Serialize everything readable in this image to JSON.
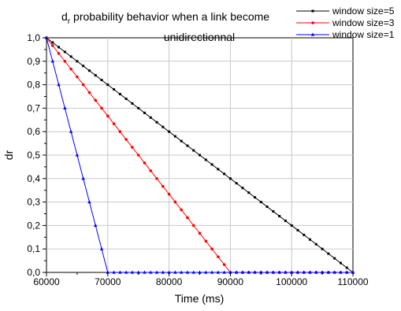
{
  "chart_data": {
    "type": "line",
    "title_main": "d",
    "title_sub": "r",
    "title_rest": " probability behavior when a link become",
    "title_line2": "unidirectionnal",
    "xlabel": "Time (ms)",
    "ylabel": "dr",
    "xlim": [
      60000,
      110000
    ],
    "ylim": [
      0,
      1.0
    ],
    "x_ticks": [
      60000,
      70000,
      80000,
      90000,
      100000,
      110000
    ],
    "x_tick_labels": [
      "60000",
      "70000",
      "80000",
      "90000",
      "100000",
      "110000"
    ],
    "y_ticks": [
      0,
      0.1,
      0.2,
      0.3,
      0.4,
      0.5,
      0.6,
      0.7,
      0.8,
      0.9,
      1.0
    ],
    "y_tick_labels": [
      "0,0",
      "0,1",
      "0,2",
      "0,3",
      "0,4",
      "0,5",
      "0,6",
      "0,7",
      "0,8",
      "0,9",
      "1,0"
    ],
    "grid": true,
    "legend_position": "top-right",
    "series": [
      {
        "name": "window size=5",
        "color": "#000000",
        "marker": "square",
        "x": [
          60000,
          110000
        ],
        "y": [
          1.0,
          0.0
        ],
        "marker_step": 1000
      },
      {
        "name": "window size=3",
        "color": "#ff0000",
        "marker": "circle",
        "x": [
          60000,
          90000,
          110000
        ],
        "y": [
          1.0,
          0.0,
          0.0
        ],
        "marker_step": 1000
      },
      {
        "name": "window size=1",
        "color": "#0000ff",
        "marker": "triangle",
        "x": [
          60000,
          70000,
          110000
        ],
        "y": [
          1.0,
          0.0,
          0.0
        ],
        "marker_step": 1000
      }
    ]
  }
}
